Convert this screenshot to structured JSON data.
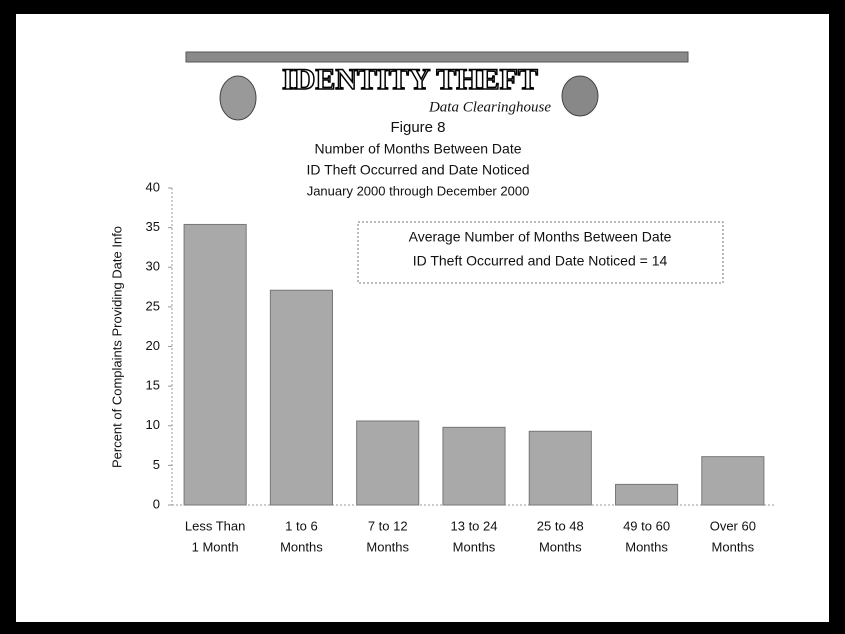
{
  "chart_data": {
    "type": "bar",
    "logo_title": "IDENTITY THEFT",
    "logo_subtitle": "Data Clearinghouse",
    "figure_label": "Figure 8",
    "title": [
      "Number of Months Between Date",
      "ID Theft Occurred and Date Noticed"
    ],
    "subtitle": "January 2000 through December 2000",
    "annotation": [
      "Average Number of Months Between Date",
      "ID Theft Occurred and Date Noticed = 14"
    ],
    "y_label": "Percent of Complaints Providing Date Info",
    "categories": [
      [
        "Less Than",
        "1 Month"
      ],
      [
        "1 to 6",
        "Months"
      ],
      [
        "7 to 12",
        "Months"
      ],
      [
        "13 to 24",
        "Months"
      ],
      [
        "25 to 48",
        "Months"
      ],
      [
        "49 to 60",
        "Months"
      ],
      [
        "Over 60",
        "Months"
      ]
    ],
    "values": [
      35.4,
      27.1,
      10.6,
      9.8,
      9.3,
      2.6,
      6.1
    ],
    "color": "#a9a9a9",
    "ylim": [
      0,
      40
    ],
    "yticks": [
      0,
      5,
      10,
      15,
      20,
      25,
      30,
      35,
      40
    ],
    "grid": false
  }
}
